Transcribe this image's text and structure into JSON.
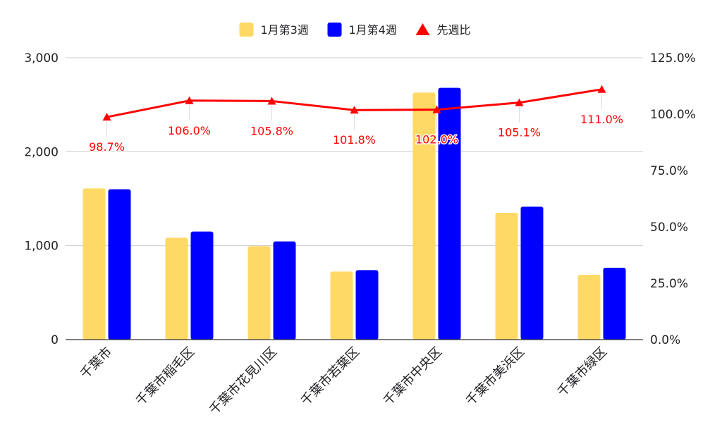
{
  "chart_data": {
    "type": "bar",
    "categories": [
      "千葉市",
      "千葉市稲毛区",
      "千葉市花見川区",
      "千葉市若葉区",
      "千葉市中央区",
      "千葉市美浜区",
      "千葉市緑区"
    ],
    "series": [
      {
        "name": "1月第3週",
        "type": "bar",
        "axis": "left",
        "color": "#ffd966",
        "values": [
          1610,
          1085,
          995,
          725,
          2630,
          1350,
          690
        ]
      },
      {
        "name": "1月第4週",
        "type": "bar",
        "axis": "left",
        "color": "#0000ff",
        "values": [
          1600,
          1150,
          1045,
          740,
          2680,
          1415,
          765
        ]
      },
      {
        "name": "先週比",
        "type": "line",
        "axis": "right",
        "color": "#ff0000",
        "marker": "triangle",
        "values": [
          98.7,
          106.0,
          105.8,
          101.8,
          102.0,
          105.1,
          111.0
        ],
        "labels": [
          "98.7%",
          "106.0%",
          "105.8%",
          "101.8%",
          "102.0%",
          "105.1%",
          "111.0%"
        ]
      }
    ],
    "left_axis": {
      "ylim": [
        0,
        3000
      ],
      "ticks": [
        0,
        1000,
        2000,
        3000
      ],
      "tick_labels": [
        "0",
        "1,000",
        "2,000",
        "3,000"
      ]
    },
    "right_axis": {
      "ylim": [
        0,
        125
      ],
      "ticks": [
        0,
        25,
        50,
        75,
        100,
        125
      ],
      "tick_labels": [
        "0.0%",
        "25.0%",
        "50.0%",
        "75.0%",
        "100.0%",
        "125.0%"
      ]
    },
    "title": "",
    "xlabel": "",
    "ylabel": "",
    "grid": true,
    "legend_position": "top"
  }
}
